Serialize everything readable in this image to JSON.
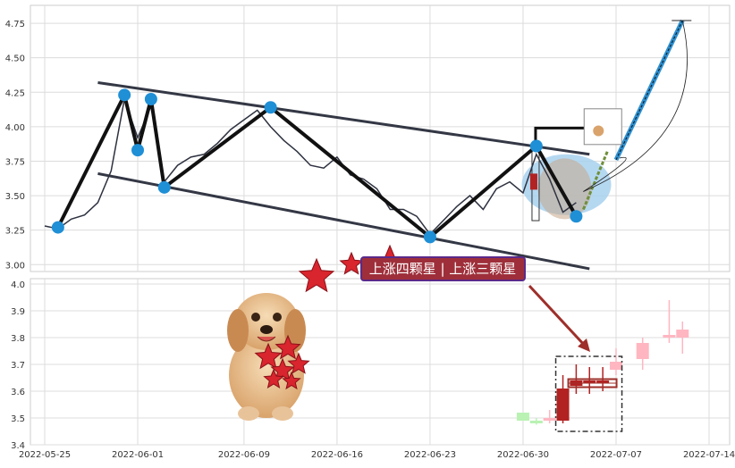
{
  "chart_data": [
    {
      "type": "line",
      "title": "",
      "xlabel": "",
      "ylabel": "",
      "ylim": [
        2.95,
        4.88
      ],
      "y_ticks": [
        3.0,
        3.25,
        3.5,
        3.75,
        4.0,
        4.25,
        4.5,
        4.75
      ],
      "y_tick_labels": [
        "3.00",
        "3.25",
        "3.50",
        "3.75",
        "4.00",
        "4.25",
        "4.50",
        "4.75"
      ],
      "grid": true,
      "x_dates": [
        "2022-05-25",
        "2022-05-26",
        "2022-05-27",
        "2022-05-28",
        "2022-05-29",
        "2022-05-30",
        "2022-05-31",
        "2022-06-01",
        "2022-06-02",
        "2022-06-03",
        "2022-06-04",
        "2022-06-05",
        "2022-06-06",
        "2022-06-07",
        "2022-06-08",
        "2022-06-09",
        "2022-06-10",
        "2022-06-11",
        "2022-06-12",
        "2022-06-13",
        "2022-06-14",
        "2022-06-15",
        "2022-06-16",
        "2022-06-17",
        "2022-06-18",
        "2022-06-19",
        "2022-06-20",
        "2022-06-21",
        "2022-06-22",
        "2022-06-23",
        "2022-06-24",
        "2022-06-25",
        "2022-06-26",
        "2022-06-27",
        "2022-06-28",
        "2022-06-29",
        "2022-06-30",
        "2022-07-01",
        "2022-07-02",
        "2022-07-03",
        "2022-07-04"
      ],
      "series": [
        {
          "values": [
            3.28,
            3.26,
            3.33,
            3.36,
            3.45,
            3.68,
            4.2,
            3.92,
            4.15,
            3.6,
            3.72,
            3.78,
            3.8,
            3.88,
            3.98,
            4.05,
            4.12,
            4.0,
            3.9,
            3.82,
            3.72,
            3.7,
            3.78,
            3.65,
            3.62,
            3.55,
            3.4,
            3.4,
            3.35,
            3.22,
            3.32,
            3.42,
            3.5,
            3.4,
            3.55,
            3.6,
            3.52,
            3.8,
            3.62,
            3.38,
            3.45
          ]
        }
      ],
      "pivots": [
        {
          "date": "2022-05-26",
          "value": 3.27
        },
        {
          "date": "2022-05-31",
          "value": 4.23
        },
        {
          "date": "2022-06-01",
          "value": 3.83
        },
        {
          "date": "2022-06-02",
          "value": 4.2
        },
        {
          "date": "2022-06-03",
          "value": 3.56
        },
        {
          "date": "2022-06-11",
          "value": 4.14
        },
        {
          "date": "2022-06-23",
          "value": 3.2
        },
        {
          "date": "2022-07-01",
          "value": 3.86
        },
        {
          "date": "2022-07-04",
          "value": 3.35
        }
      ],
      "channel_lines": [
        {
          "start": {
            "date": "2022-05-29",
            "value": 4.32
          },
          "end": {
            "date": "2022-07-05",
            "value": 3.8
          }
        },
        {
          "start": {
            "date": "2022-05-29",
            "value": 3.66
          },
          "end": {
            "date": "2022-07-05",
            "value": 2.97
          }
        }
      ],
      "projection": [
        {
          "date": "2022-07-07",
          "value": 3.76
        },
        {
          "date": "2022-07-12",
          "value": 4.77
        }
      ]
    },
    {
      "type": "candlestick",
      "ylim": [
        3.4,
        4.02
      ],
      "y_ticks": [
        3.4,
        3.5,
        3.6,
        3.7,
        3.8,
        3.9,
        4.0
      ],
      "y_tick_labels": [
        "3.4",
        "3.5",
        "3.6",
        "3.7",
        "3.8",
        "3.9",
        "4.0"
      ],
      "grid": true,
      "x_ticks": [
        "2022-05-25",
        "2022-06-01",
        "2022-06-09",
        "2022-06-16",
        "2022-06-23",
        "2022-06-30",
        "2022-07-07",
        "2022-07-14"
      ],
      "candles": [
        {
          "date": "2022-06-30",
          "open": 3.52,
          "close": 3.49,
          "high": 3.52,
          "low": 3.49,
          "color": "#b9f2b3"
        },
        {
          "date": "2022-07-01",
          "open": 3.49,
          "close": 3.48,
          "high": 3.5,
          "low": 3.475,
          "color": "#b9f2b3"
        },
        {
          "date": "2022-07-02",
          "open": 3.49,
          "close": 3.5,
          "high": 3.53,
          "low": 3.48,
          "color": "#ffb6c1"
        },
        {
          "date": "2022-07-03",
          "open": 3.49,
          "close": 3.61,
          "high": 3.66,
          "low": 3.48,
          "color": "#b22222"
        },
        {
          "date": "2022-07-04",
          "open": 3.62,
          "close": 3.64,
          "high": 3.7,
          "low": 3.59,
          "color": "#b22222"
        },
        {
          "date": "2022-07-05",
          "open": 3.63,
          "close": 3.64,
          "high": 3.69,
          "low": 3.59,
          "color": "#b22222"
        },
        {
          "date": "2022-07-06",
          "open": 3.63,
          "close": 3.64,
          "high": 3.69,
          "low": 3.6,
          "color": "#b22222"
        },
        {
          "date": "2022-07-07",
          "open": 3.68,
          "close": 3.71,
          "high": 3.76,
          "low": 3.66,
          "color": "#ffb6c1"
        },
        {
          "date": "2022-07-09",
          "open": 3.72,
          "close": 3.78,
          "high": 3.8,
          "low": 3.68,
          "color": "#ffb6c1"
        },
        {
          "date": "2022-07-11",
          "open": 3.8,
          "close": 3.81,
          "high": 3.94,
          "low": 3.78,
          "color": "#ffb6c1"
        },
        {
          "date": "2022-07-12",
          "open": 3.8,
          "close": 3.83,
          "high": 3.86,
          "low": 3.74,
          "color": "#ffb6c1"
        }
      ],
      "annotation": "上涨四颗星 | 上涨三颗星"
    }
  ]
}
